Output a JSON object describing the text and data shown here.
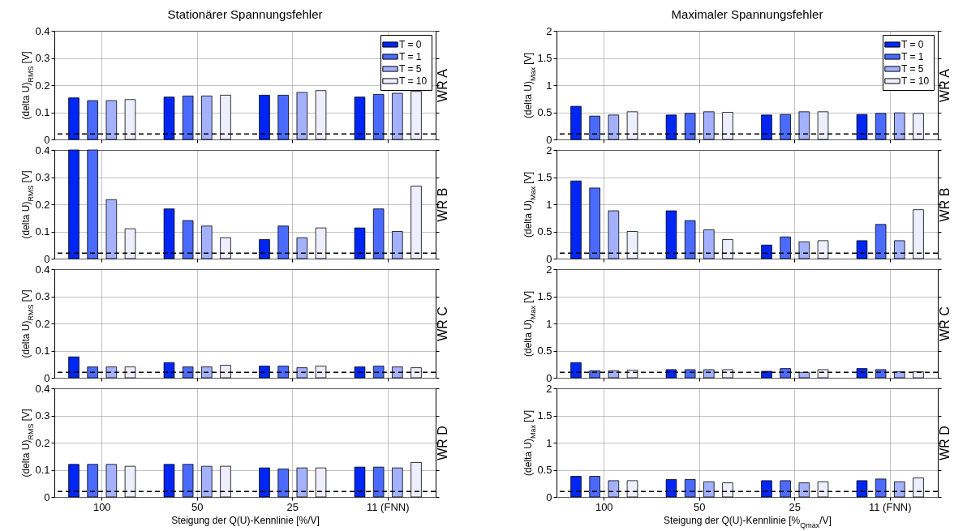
{
  "chart_data": [
    {
      "type": "bar",
      "title": "Stationärer Spannungsfehler",
      "ylabel": "(delta U)$_{RMS}$ [V]",
      "y2label": "WR A",
      "categories": [
        null,
        null,
        null,
        null
      ],
      "ylim": [
        0,
        0.4
      ],
      "yticks": [
        0,
        0.1,
        0.2,
        0.3,
        0.4
      ],
      "grid": true,
      "legend": "top right",
      "ref_lines": [
        {
          "axis": "y",
          "value": 0.02,
          "color": "#000000",
          "line_style": "dashed"
        }
      ],
      "series": [
        {
          "name": "T = 0",
          "color": "#0026f5",
          "values": [
            0.153,
            0.156,
            0.163,
            0.156
          ]
        },
        {
          "name": "T = 1",
          "color": "#4b6bff",
          "values": [
            0.143,
            0.16,
            0.163,
            0.166
          ]
        },
        {
          "name": "T = 5",
          "color": "#a3b1ff",
          "values": [
            0.143,
            0.16,
            0.173,
            0.17
          ]
        },
        {
          "name": "T = 10",
          "color": "#eeeeff",
          "values": [
            0.147,
            0.163,
            0.18,
            0.177
          ]
        }
      ]
    },
    {
      "type": "bar",
      "title": "Maximaler Spannungsfehler",
      "ylabel": "(delta U)$_{Max}$ [V]",
      "y2label": "WR A",
      "categories": [
        null,
        null,
        null,
        null
      ],
      "ylim": [
        0,
        2
      ],
      "yticks": [
        0,
        0.5,
        1,
        1.5,
        2
      ],
      "grid": true,
      "legend": "top right",
      "ref_lines": [
        {
          "axis": "y",
          "value": 0.1,
          "color": "#000000",
          "line_style": "dashed"
        }
      ],
      "series": [
        {
          "name": "T = 0",
          "color": "#0026f5",
          "values": [
            0.61,
            0.45,
            0.45,
            0.46
          ]
        },
        {
          "name": "T = 1",
          "color": "#4b6bff",
          "values": [
            0.43,
            0.48,
            0.46,
            0.48
          ]
        },
        {
          "name": "T = 5",
          "color": "#a3b1ff",
          "values": [
            0.45,
            0.51,
            0.51,
            0.49
          ]
        },
        {
          "name": "T = 10",
          "color": "#eeeeff",
          "values": [
            0.51,
            0.5,
            0.51,
            0.48
          ]
        }
      ]
    },
    {
      "type": "bar",
      "ylabel": "(delta U)$_{RMS}$ [V]",
      "y2label": "WR B",
      "categories": [
        null,
        null,
        null,
        null
      ],
      "ylim": [
        0,
        0.4
      ],
      "yticks": [
        0,
        0.1,
        0.2,
        0.3,
        0.4
      ],
      "grid": true,
      "ref_lines": [
        {
          "axis": "y",
          "value": 0.02,
          "color": "#000000",
          "line_style": "dashed"
        }
      ],
      "series": [
        {
          "color": "#0026f5",
          "values": [
            0.4,
            0.183,
            0.07,
            0.113
          ]
        },
        {
          "color": "#4b6bff",
          "values": [
            0.4,
            0.14,
            0.12,
            0.183
          ]
        },
        {
          "color": "#a3b1ff",
          "values": [
            0.217,
            0.12,
            0.077,
            0.1
          ]
        },
        {
          "color": "#eeeeff",
          "values": [
            0.11,
            0.077,
            0.113,
            0.267
          ]
        }
      ]
    },
    {
      "type": "bar",
      "ylabel": "(delta U)$_{Max}$ [V]",
      "y2label": "WR B",
      "categories": [
        null,
        null,
        null,
        null
      ],
      "ylim": [
        0,
        2
      ],
      "yticks": [
        0,
        0.5,
        1,
        1.5,
        2
      ],
      "grid": true,
      "ref_lines": [
        {
          "axis": "y",
          "value": 0.1,
          "color": "#000000",
          "line_style": "dashed"
        }
      ],
      "series": [
        {
          "color": "#0026f5",
          "values": [
            1.43,
            0.88,
            0.25,
            0.33
          ]
        },
        {
          "color": "#4b6bff",
          "values": [
            1.3,
            0.7,
            0.4,
            0.63
          ]
        },
        {
          "color": "#a3b1ff",
          "values": [
            0.88,
            0.53,
            0.31,
            0.33
          ]
        },
        {
          "color": "#eeeeff",
          "values": [
            0.5,
            0.35,
            0.33,
            0.9
          ]
        }
      ]
    },
    {
      "type": "bar",
      "ylabel": "(delta U)$_{RMS}$ [V]",
      "y2label": "WR C",
      "categories": [
        null,
        null,
        null,
        null
      ],
      "ylim": [
        0,
        0.4
      ],
      "yticks": [
        0,
        0.1,
        0.2,
        0.3,
        0.4
      ],
      "grid": true,
      "ref_lines": [
        {
          "axis": "y",
          "value": 0.02,
          "color": "#000000",
          "line_style": "dashed"
        }
      ],
      "series": [
        {
          "color": "#0026f5",
          "values": [
            0.077,
            0.056,
            0.043,
            0.04
          ]
        },
        {
          "color": "#4b6bff",
          "values": [
            0.04,
            0.04,
            0.043,
            0.043
          ]
        },
        {
          "color": "#a3b1ff",
          "values": [
            0.04,
            0.04,
            0.037,
            0.04
          ]
        },
        {
          "color": "#eeeeff",
          "values": [
            0.04,
            0.046,
            0.043,
            0.037
          ]
        }
      ]
    },
    {
      "type": "bar",
      "ylabel": "(delta U)$_{Max}$ [V]",
      "y2label": "WR C",
      "categories": [
        null,
        null,
        null,
        null
      ],
      "ylim": [
        0,
        2
      ],
      "yticks": [
        0,
        0.5,
        1,
        1.5,
        2
      ],
      "grid": true,
      "ref_lines": [
        {
          "axis": "y",
          "value": 0.1,
          "color": "#000000",
          "line_style": "dashed"
        }
      ],
      "series": [
        {
          "color": "#0026f5",
          "values": [
            0.28,
            0.15,
            0.12,
            0.17
          ]
        },
        {
          "color": "#4b6bff",
          "values": [
            0.13,
            0.15,
            0.17,
            0.15
          ]
        },
        {
          "color": "#a3b1ff",
          "values": [
            0.13,
            0.15,
            0.1,
            0.11
          ]
        },
        {
          "color": "#eeeeff",
          "values": [
            0.14,
            0.15,
            0.15,
            0.11
          ]
        }
      ]
    },
    {
      "type": "bar",
      "ylabel": "(delta U)$_{RMS}$ [V]",
      "y2label": "WR D",
      "xlabel": "Steigung der Q(U)-Kennlinie [%/V]",
      "categories": [
        "100",
        "50",
        "25",
        "11 (FNN)"
      ],
      "ylim": [
        0,
        0.4
      ],
      "yticks": [
        0,
        0.1,
        0.2,
        0.3,
        0.4
      ],
      "grid": true,
      "ref_lines": [
        {
          "axis": "y",
          "value": 0.02,
          "color": "#000000",
          "line_style": "dashed"
        }
      ],
      "series": [
        {
          "color": "#0026f5",
          "values": [
            0.12,
            0.12,
            0.107,
            0.11
          ]
        },
        {
          "color": "#4b6bff",
          "values": [
            0.12,
            0.12,
            0.103,
            0.11
          ]
        },
        {
          "color": "#a3b1ff",
          "values": [
            0.12,
            0.113,
            0.107,
            0.107
          ]
        },
        {
          "color": "#eeeeff",
          "values": [
            0.113,
            0.113,
            0.107,
            0.127
          ]
        }
      ]
    },
    {
      "type": "bar",
      "ylabel": "(delta U)$_{Max}$ [V]",
      "y2label": "WR D",
      "xlabel": "Steigung der Q(U)-Kennlinie [%$_{Qmax}$/V]",
      "categories": [
        "100",
        "50",
        "25",
        "11 (FNN)"
      ],
      "ylim": [
        0,
        2
      ],
      "yticks": [
        0,
        0.5,
        1,
        1.5,
        2
      ],
      "grid": true,
      "ref_lines": [
        {
          "axis": "y",
          "value": 0.1,
          "color": "#000000",
          "line_style": "dashed"
        }
      ],
      "series": [
        {
          "color": "#0026f5",
          "values": [
            0.38,
            0.32,
            0.3,
            0.3
          ]
        },
        {
          "color": "#4b6bff",
          "values": [
            0.38,
            0.32,
            0.3,
            0.33
          ]
        },
        {
          "color": "#a3b1ff",
          "values": [
            0.3,
            0.28,
            0.26,
            0.28
          ]
        },
        {
          "color": "#eeeeff",
          "values": [
            0.3,
            0.26,
            0.28,
            0.35
          ]
        }
      ]
    }
  ]
}
